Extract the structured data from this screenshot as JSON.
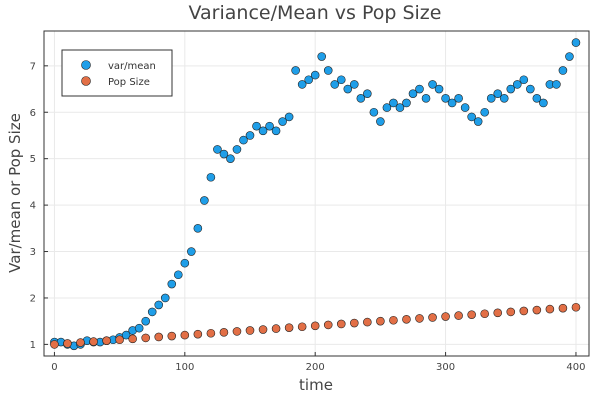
{
  "chart_data": {
    "type": "scatter",
    "title": "Variance/Mean vs Pop Size",
    "xlabel": "time",
    "ylabel": "Var/mean or Pop Size",
    "xlim": [
      -8,
      410
    ],
    "ylim": [
      0.75,
      7.75
    ],
    "xticks": [
      0,
      100,
      200,
      300,
      400
    ],
    "yticks": [
      1,
      2,
      3,
      4,
      5,
      6,
      7
    ],
    "grid": true,
    "legend_position": "top-left",
    "series": [
      {
        "name": "var/mean",
        "color": "#1f9ee8",
        "x": [
          0,
          5,
          10,
          15,
          20,
          25,
          30,
          35,
          40,
          45,
          50,
          55,
          60,
          65,
          70,
          75,
          80,
          85,
          90,
          95,
          100,
          105,
          110,
          115,
          120,
          125,
          130,
          135,
          140,
          145,
          150,
          155,
          160,
          165,
          170,
          175,
          180,
          185,
          190,
          195,
          200,
          205,
          210,
          215,
          220,
          225,
          230,
          235,
          240,
          245,
          250,
          255,
          260,
          265,
          270,
          275,
          280,
          285,
          290,
          295,
          300,
          305,
          310,
          315,
          320,
          325,
          330,
          335,
          340,
          345,
          350,
          355,
          360,
          365,
          370,
          375,
          380,
          385,
          390,
          395,
          400
        ],
        "y": [
          1.05,
          1.05,
          1.0,
          0.97,
          1.0,
          1.08,
          1.05,
          1.05,
          1.08,
          1.1,
          1.15,
          1.2,
          1.3,
          1.35,
          1.5,
          1.7,
          1.85,
          2.0,
          2.3,
          2.5,
          2.75,
          3.0,
          3.5,
          4.1,
          4.6,
          5.2,
          5.1,
          5.0,
          5.2,
          5.4,
          5.5,
          5.7,
          5.6,
          5.7,
          5.6,
          5.8,
          5.9,
          6.9,
          6.6,
          6.7,
          6.8,
          7.2,
          6.9,
          6.6,
          6.7,
          6.5,
          6.6,
          6.3,
          6.4,
          6.0,
          5.8,
          6.1,
          6.2,
          6.1,
          6.2,
          6.4,
          6.5,
          6.3,
          6.6,
          6.5,
          6.3,
          6.2,
          6.3,
          6.1,
          5.9,
          5.8,
          6.0,
          6.3,
          6.4,
          6.3,
          6.5,
          6.6,
          6.7,
          6.5,
          6.3,
          6.2,
          6.6,
          6.6,
          6.9,
          7.2,
          7.5
        ]
      },
      {
        "name": "Pop Size",
        "color": "#e26f46",
        "x": [
          0,
          10,
          20,
          30,
          40,
          50,
          60,
          70,
          80,
          90,
          100,
          110,
          120,
          130,
          140,
          150,
          160,
          170,
          180,
          190,
          200,
          210,
          220,
          230,
          240,
          250,
          260,
          270,
          280,
          290,
          300,
          310,
          320,
          330,
          340,
          350,
          360,
          370,
          380,
          390,
          400
        ],
        "y": [
          1.0,
          1.02,
          1.04,
          1.06,
          1.08,
          1.1,
          1.12,
          1.14,
          1.16,
          1.18,
          1.2,
          1.22,
          1.24,
          1.26,
          1.28,
          1.3,
          1.32,
          1.34,
          1.36,
          1.38,
          1.4,
          1.42,
          1.44,
          1.46,
          1.48,
          1.5,
          1.52,
          1.54,
          1.56,
          1.58,
          1.6,
          1.62,
          1.64,
          1.66,
          1.68,
          1.7,
          1.72,
          1.74,
          1.76,
          1.78,
          1.8
        ]
      }
    ]
  }
}
